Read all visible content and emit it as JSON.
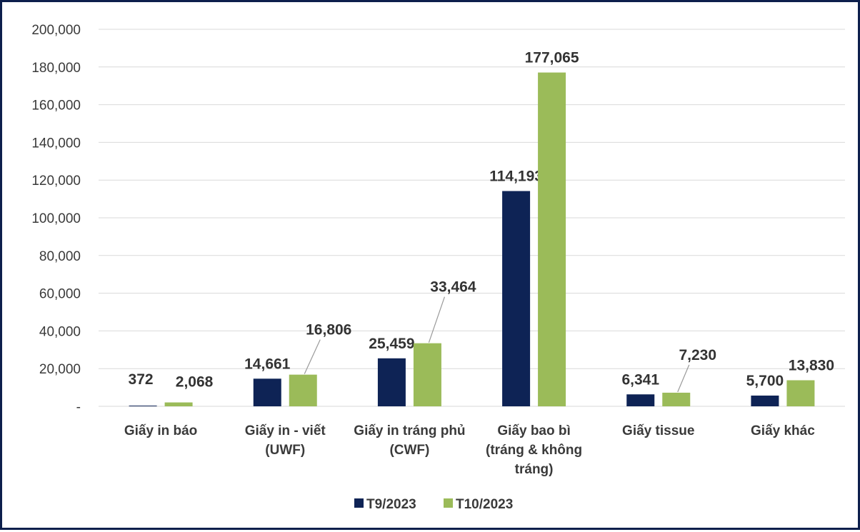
{
  "chart_data": {
    "type": "bar",
    "title": "",
    "xlabel": "",
    "ylabel": "",
    "ylim": [
      0,
      200000
    ],
    "yticks": [
      0,
      20000,
      40000,
      60000,
      80000,
      100000,
      120000,
      140000,
      160000,
      180000,
      200000
    ],
    "ytick_labels": [
      "-",
      "20,000",
      "40,000",
      "60,000",
      "80,000",
      "100,000",
      "120,000",
      "140,000",
      "160,000",
      "180,000",
      "200,000"
    ],
    "grid": true,
    "legend_position": "bottom",
    "categories": [
      [
        "Giấy in báo"
      ],
      [
        "Giấy in - viết",
        "(UWF)"
      ],
      [
        "Giấy in tráng phủ",
        "(CWF)"
      ],
      [
        "Giấy bao bì",
        "(tráng & không",
        "tráng)"
      ],
      [
        "Giấy tissue"
      ],
      [
        "Giấy khác"
      ]
    ],
    "series": [
      {
        "name": "T9/2023",
        "color": "#0e2355",
        "values": [
          372,
          14661,
          25459,
          114193,
          6341,
          5700
        ],
        "labels": [
          "372",
          "14,661",
          "25,459",
          "114,193",
          "6,341",
          "5,700"
        ]
      },
      {
        "name": "T10/2023",
        "color": "#9bbb59",
        "values": [
          2068,
          16806,
          33464,
          177065,
          7230,
          13830
        ],
        "labels": [
          "2,068",
          "16,806",
          "33,464",
          "177,065",
          "7,230",
          "13,830"
        ]
      }
    ]
  }
}
